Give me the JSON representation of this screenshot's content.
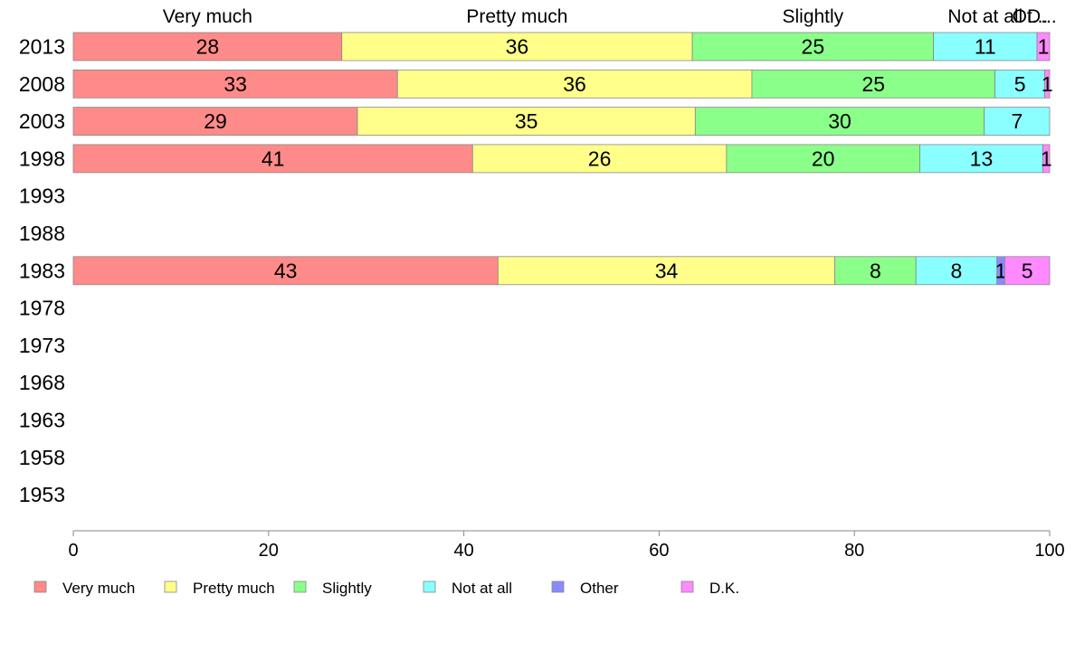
{
  "chart_data": {
    "type": "bar",
    "orientation": "horizontal",
    "stacked": true,
    "categories": [
      "2013",
      "2008",
      "2003",
      "1998",
      "1993",
      "1988",
      "1983",
      "1978",
      "1973",
      "1968",
      "1963",
      "1958",
      "1953"
    ],
    "series": [
      {
        "name": "Very much",
        "color": "#ff8a8a",
        "values": [
          28,
          33,
          29,
          41,
          null,
          null,
          43,
          null,
          null,
          null,
          null,
          null,
          null
        ]
      },
      {
        "name": "Pretty much",
        "color": "#ffff8a",
        "values": [
          36,
          36,
          35,
          26,
          null,
          null,
          34,
          null,
          null,
          null,
          null,
          null,
          null
        ]
      },
      {
        "name": "Slightly",
        "color": "#8aff8a",
        "values": [
          25,
          25,
          30,
          20,
          null,
          null,
          8,
          null,
          null,
          null,
          null,
          null,
          null
        ]
      },
      {
        "name": "Not at all",
        "color": "#8affff",
        "values": [
          11,
          5,
          7,
          13,
          null,
          null,
          8,
          null,
          null,
          null,
          null,
          null,
          null
        ]
      },
      {
        "name": "Other",
        "color": "#8a8aff",
        "values": [
          0,
          0,
          0,
          0,
          null,
          null,
          1,
          null,
          null,
          null,
          null,
          null,
          null
        ]
      },
      {
        "name": "D.K.",
        "color": "#ff8aff",
        "values": [
          1,
          1,
          0,
          1,
          null,
          null,
          5,
          null,
          null,
          null,
          null,
          null,
          null
        ]
      }
    ],
    "precise_values": [
      [
        27.5,
        35.9,
        24.7,
        10.6,
        0.0,
        1.3
      ],
      [
        33.2,
        36.3,
        24.9,
        5.1,
        0.0,
        0.5
      ],
      [
        29.1,
        34.6,
        29.6,
        6.7,
        0.0,
        0.0
      ],
      [
        40.9,
        26.0,
        19.8,
        12.6,
        0.0,
        0.7
      ],
      null,
      null,
      [
        43.5,
        34.5,
        8.3,
        8.3,
        0.8,
        4.6
      ],
      null,
      null,
      null,
      null,
      null,
      null
    ],
    "top_labels": [
      "Very much",
      "Pretty much",
      "Slightly",
      "Not at all",
      "Ot...",
      "D..."
    ],
    "xlim": [
      0,
      100
    ],
    "xticks": [
      "0",
      "20",
      "40",
      "60",
      "80",
      "100"
    ],
    "xlabel": "",
    "ylabel": "",
    "title": "",
    "grid": false,
    "legend_position": "bottom-left"
  }
}
